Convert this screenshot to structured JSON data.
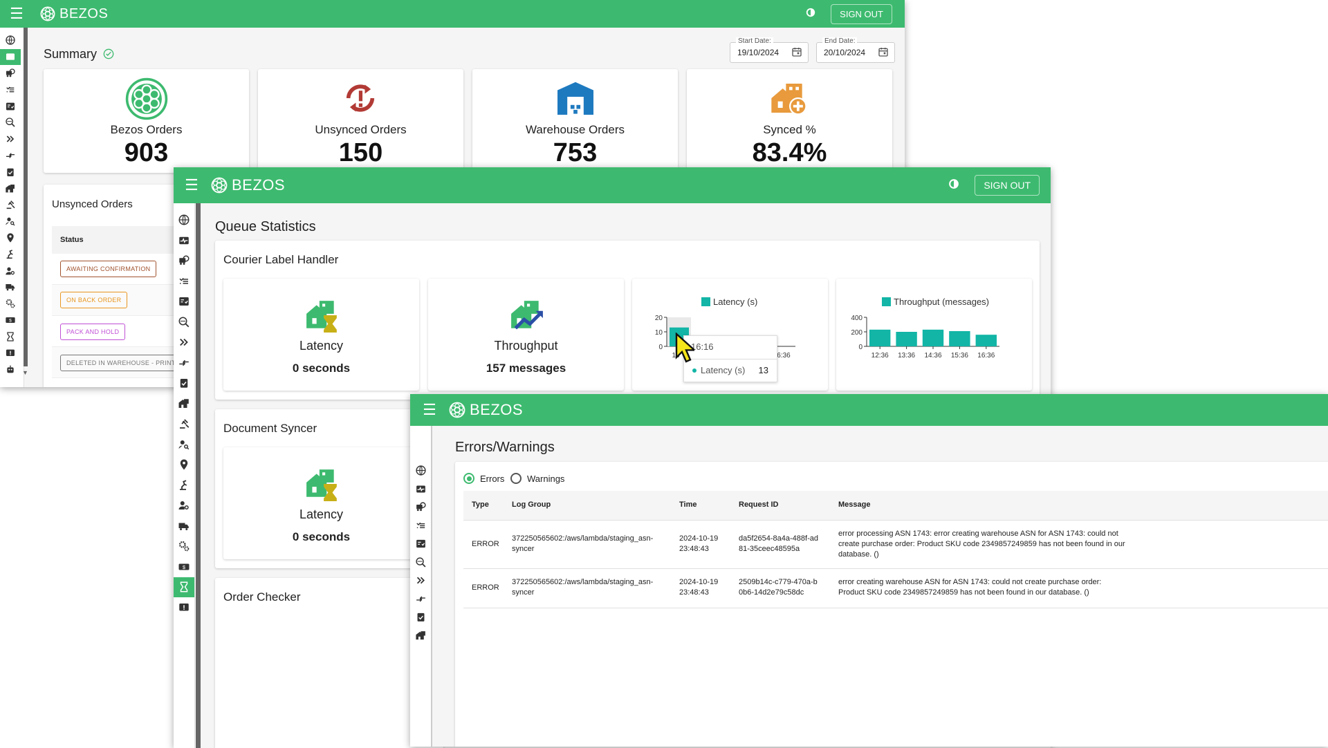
{
  "app": {
    "name": "BEZOS",
    "sign_out": "SIGN OUT"
  },
  "colors": {
    "brand": "#3dba6f",
    "teal": "#12b5a6"
  },
  "sidebar_icons": [
    "globe-icon",
    "pulse-icon",
    "delivery-icon",
    "list-icon",
    "checklist-icon",
    "search-globe-icon",
    "double-chevron-icon",
    "arrows-icon",
    "clipboard-check-icon",
    "warehouse-icon",
    "gavel-icon",
    "user-search-icon",
    "location-icon",
    "robot-arm-icon",
    "user-gear-icon",
    "truck-icon",
    "gears-icon",
    "money-icon",
    "hourglass-icon",
    "alert-icon",
    "robot-icon"
  ],
  "summary": {
    "title": "Summary",
    "start_date_label": "Start Date:",
    "start_date": "19/10/2024",
    "end_date_label": "End Date:",
    "end_date": "20/10/2024",
    "stats": [
      {
        "label": "Bezos Orders",
        "value": "903",
        "icon": "bezos-logo-icon"
      },
      {
        "label": "Unsynced Orders",
        "value": "150",
        "icon": "sync-error-icon"
      },
      {
        "label": "Warehouse Orders",
        "value": "753",
        "icon": "warehouse-icon"
      },
      {
        "label": "Synced %",
        "value": "83.4%",
        "icon": "home-add-icon"
      }
    ],
    "unsynced_orders": {
      "title": "Unsynced Orders",
      "status_header": "Status",
      "statuses": [
        {
          "label": "AWAITING CONFIRMATION",
          "color": "#a0522d"
        },
        {
          "label": "ON BACK ORDER",
          "color": "#e8961e"
        },
        {
          "label": "PACK AND HOLD",
          "color": "#c04fd6"
        },
        {
          "label": "DELETED IN WAREHOUSE - PRINTED",
          "color": "#777777"
        }
      ]
    }
  },
  "queue": {
    "title": "Queue Statistics",
    "courier": {
      "title": "Courier Label Handler",
      "latency_label": "Latency",
      "latency_value": "0 seconds",
      "throughput_label": "Throughput",
      "throughput_value": "157 messages"
    },
    "document_syncer": {
      "title": "Document Syncer",
      "latency_label": "Latency",
      "latency_value": "0 seconds"
    },
    "order_checker": {
      "title": "Order Checker"
    },
    "tooltip": {
      "time": "16:16",
      "series": "Latency (s)",
      "value": "13"
    }
  },
  "chart_data": [
    {
      "type": "bar",
      "legend": "Latency (s)",
      "categories": [
        "16:16"
      ],
      "tick_labels": [
        "16",
        "6:36"
      ],
      "values": [
        13
      ],
      "ylim": [
        0,
        20
      ],
      "yticks": [
        "20",
        "10",
        "0"
      ]
    },
    {
      "type": "bar",
      "legend": "Throughput (messages)",
      "categories": [
        "12:36",
        "13:36",
        "14:36",
        "15:36",
        "16:36"
      ],
      "series": [
        {
          "name": "Throughput (messages)",
          "values": [
            230,
            200,
            230,
            210,
            160
          ]
        }
      ],
      "ylim": [
        0,
        400
      ],
      "yticks": [
        "400",
        "200",
        "0"
      ]
    }
  ],
  "errors": {
    "title": "Errors/Warnings",
    "radio_errors": "Errors",
    "radio_warnings": "Warnings",
    "columns": [
      "Type",
      "Log Group",
      "Time",
      "Request ID",
      "Message"
    ],
    "rows": [
      {
        "type": "ERROR",
        "log_group": "372250565602:/aws/lambda/staging_asn-syncer",
        "time": "2024-10-19 23:48:43",
        "request_id": "da5f2654-8a4a-488f-ad81-35ceec48595a",
        "message": "error processing ASN 1743: error creating warehouse ASN for ASN 1743: could not create purchase order: Product SKU code 2349857249859 has not been found in our database. ()"
      },
      {
        "type": "ERROR",
        "log_group": "372250565602:/aws/lambda/staging_asn-syncer",
        "time": "2024-10-19 23:48:43",
        "request_id": "2509b14c-c779-470a-b0b6-14d2e79c58dc",
        "message": "error creating warehouse ASN for ASN 1743: could not create purchase order: Product SKU code 2349857249859 has not been found in our database. ()"
      }
    ]
  }
}
